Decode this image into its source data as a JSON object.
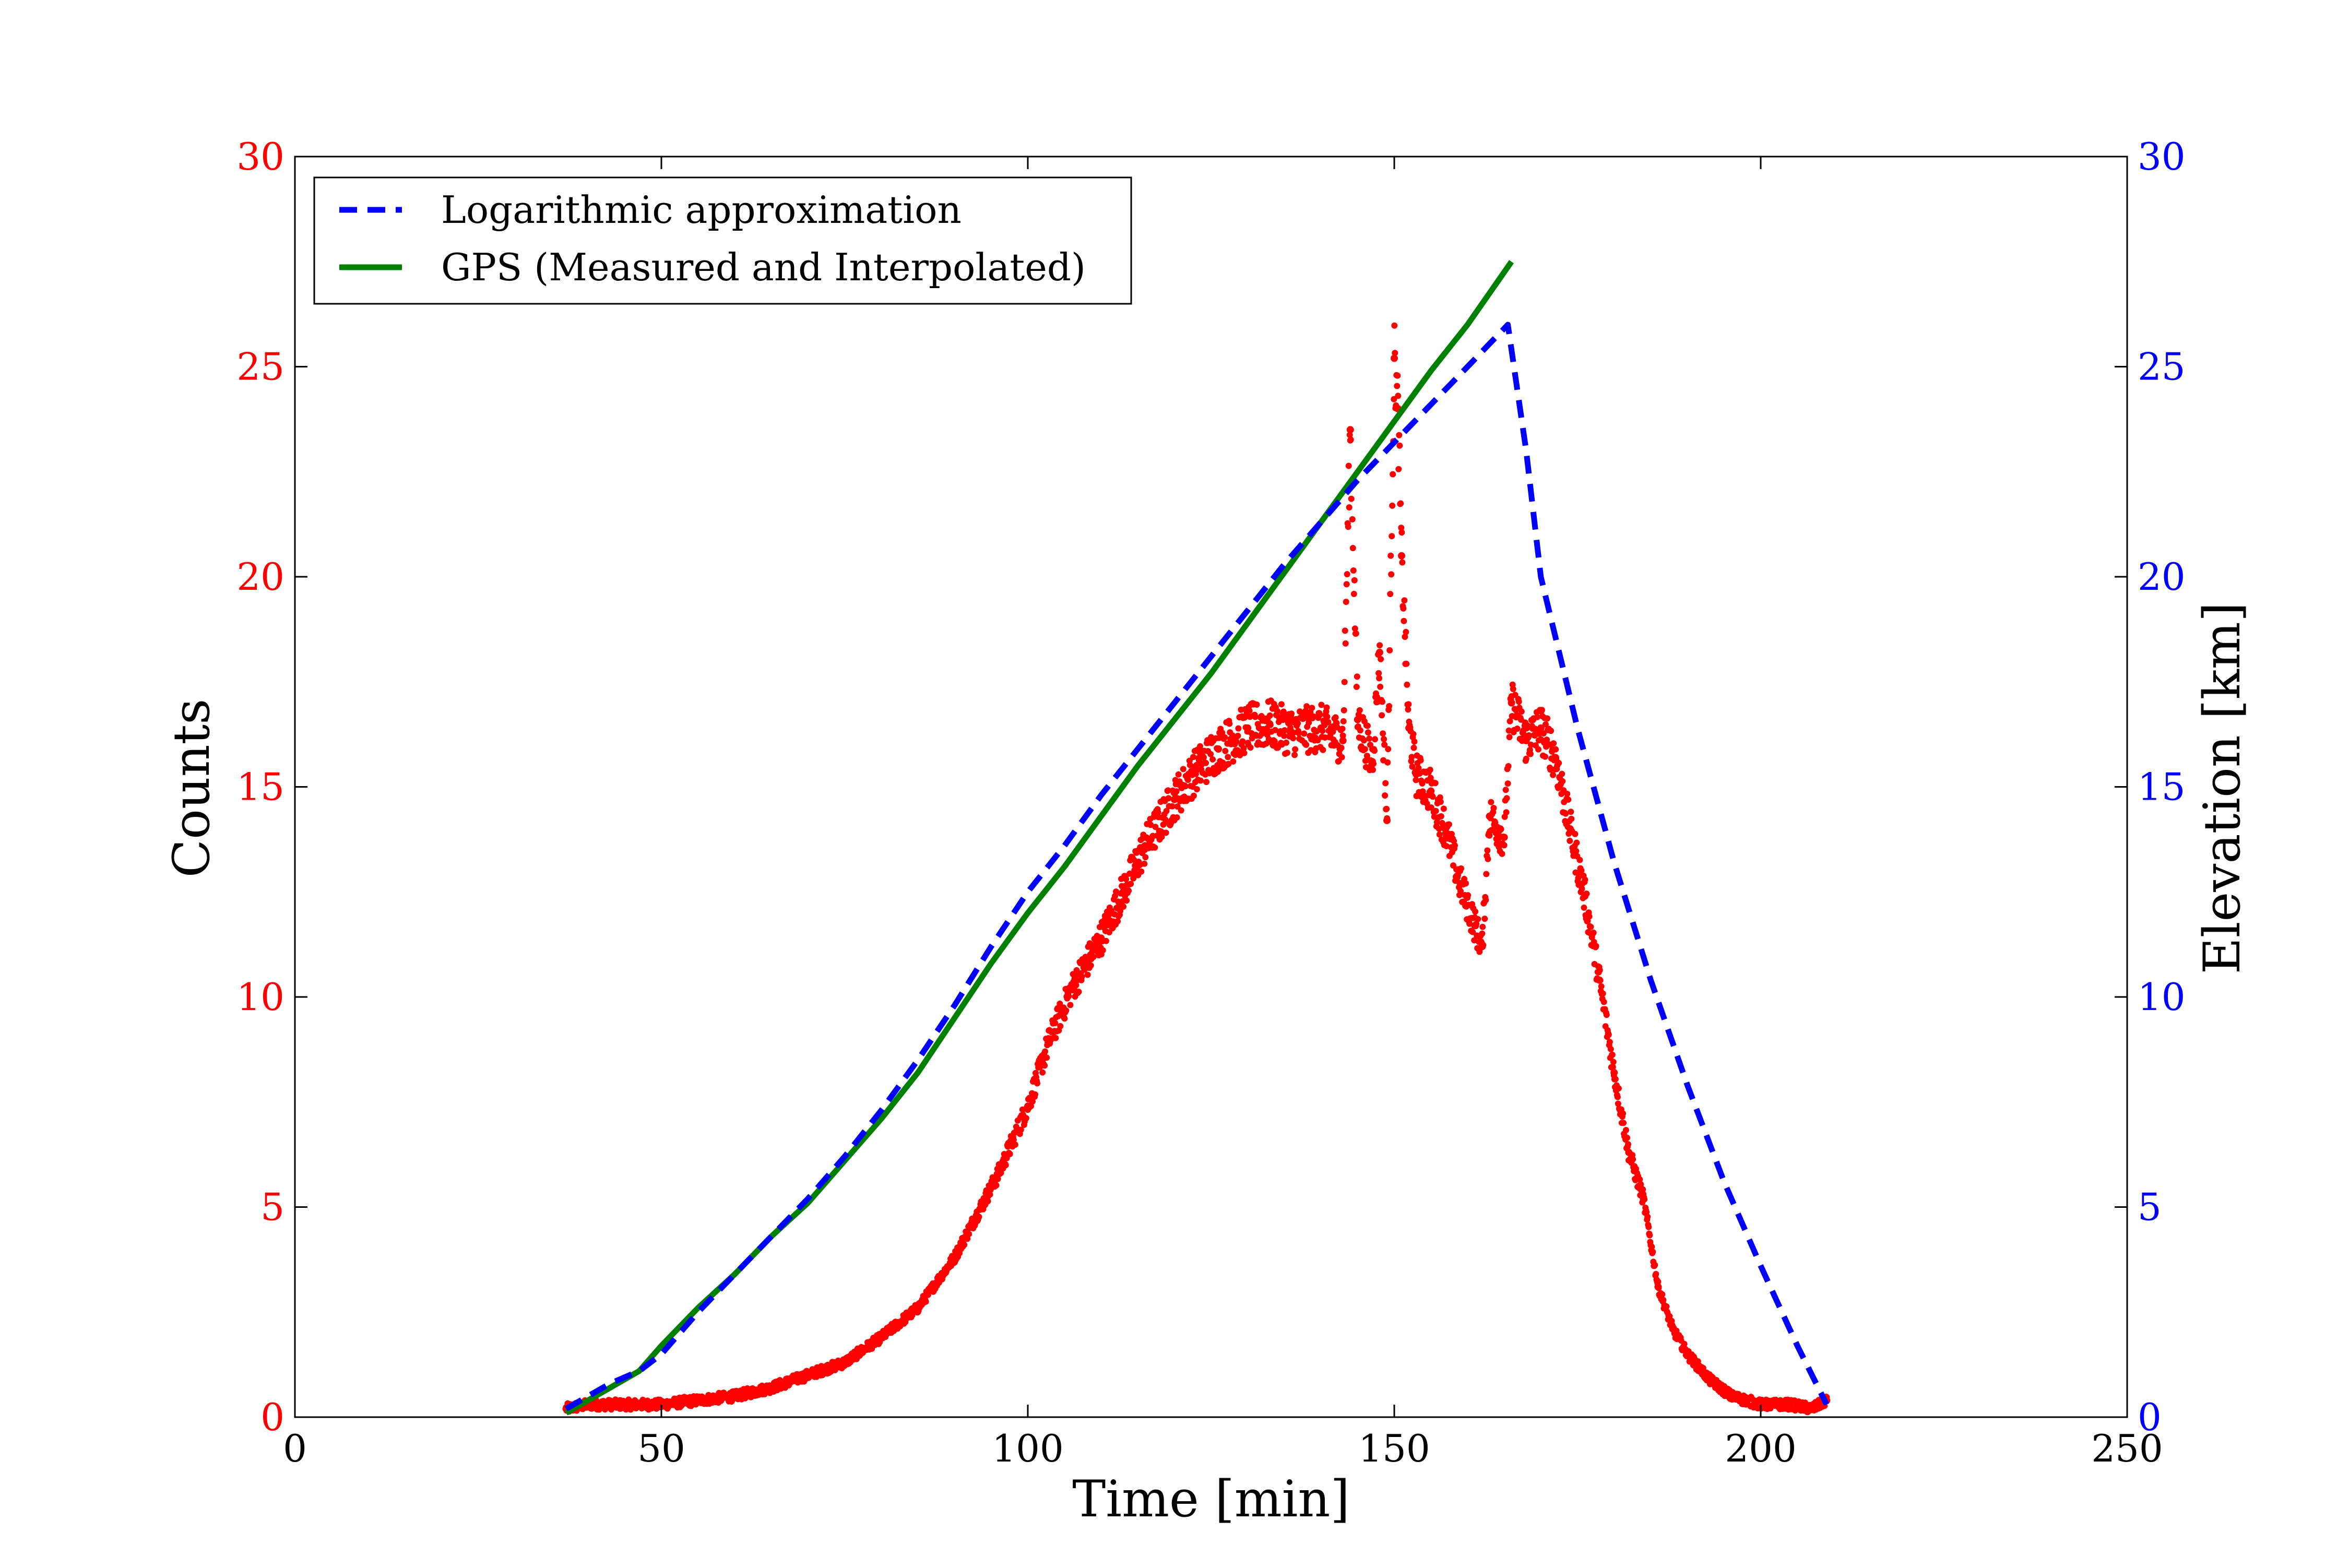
{
  "chart_data": {
    "type": "line",
    "title": "",
    "xlabel": "Time [min]",
    "ylabel_left": "Counts",
    "ylabel_right": "Elevation [km]",
    "xlim": [
      0,
      250
    ],
    "ylim_left": [
      0,
      30
    ],
    "ylim_right": [
      0,
      30
    ],
    "xticks": [
      "0",
      "50",
      "100",
      "150",
      "200",
      "250"
    ],
    "yticks_left": [
      "0",
      "5",
      "10",
      "15",
      "20",
      "25",
      "30"
    ],
    "yticks_right": [
      "0",
      "5",
      "10",
      "15",
      "20",
      "25",
      "30"
    ],
    "grid": false,
    "legend_position": "upper-left",
    "colors": {
      "counts": "#ff0000",
      "log_approx": "#0000ff",
      "gps": "#008000",
      "left_ticks": "#ff0000",
      "right_ticks": "#0000ff"
    },
    "series": [
      {
        "name": "Logarithmic approximation",
        "axis": "right",
        "style": "dashed",
        "x": [
          37,
          40,
          43,
          47,
          50,
          55,
          60,
          65,
          70,
          75,
          80,
          85,
          90,
          95,
          100,
          105,
          110,
          115,
          120,
          125,
          130,
          135,
          140,
          145,
          150,
          155,
          160,
          165.5,
          168,
          170,
          175,
          180,
          185,
          190,
          195,
          200,
          205,
          209
        ],
        "y": [
          0.2,
          0.5,
          0.8,
          1.1,
          1.5,
          2.5,
          3.4,
          4.3,
          5.2,
          6.2,
          7.3,
          8.5,
          9.8,
          11.2,
          12.5,
          13.6,
          14.8,
          15.9,
          17.0,
          18.1,
          19.2,
          20.3,
          21.3,
          22.3,
          23.2,
          24.1,
          25.0,
          26.0,
          23.0,
          20.0,
          16.4,
          13.2,
          10.4,
          7.9,
          5.6,
          3.6,
          1.7,
          0.3
        ]
      },
      {
        "name": "GPS (Measured and Interpolated)",
        "axis": "right",
        "style": "solid",
        "x": [
          37,
          40,
          43,
          47,
          50,
          55,
          60,
          65,
          70,
          75,
          80,
          85,
          90,
          95,
          100,
          105,
          110,
          115,
          120,
          125,
          130,
          135,
          140,
          145,
          150,
          155,
          160,
          166
        ],
        "y": [
          0.1,
          0.4,
          0.7,
          1.1,
          1.7,
          2.6,
          3.4,
          4.3,
          5.1,
          6.1,
          7.1,
          8.2,
          9.5,
          10.8,
          12.0,
          13.1,
          14.3,
          15.5,
          16.6,
          17.7,
          18.9,
          20.1,
          21.3,
          22.5,
          23.7,
          24.9,
          26.0,
          27.5
        ]
      },
      {
        "name": "Counts",
        "axis": "left",
        "style": "points",
        "x": [
          37,
          40,
          45,
          50,
          55,
          60,
          65,
          70,
          75,
          80,
          85,
          90,
          93,
          96,
          100,
          103,
          106,
          110,
          113,
          116,
          120,
          123,
          126,
          130,
          133,
          136,
          140,
          143,
          144,
          145,
          147,
          148,
          149,
          150,
          150.5,
          151,
          152,
          153,
          155,
          157,
          159,
          161,
          162,
          163,
          165,
          166,
          168,
          170,
          172,
          174,
          176,
          178,
          180,
          182,
          184,
          186,
          188,
          190,
          193,
          196,
          200,
          204,
          207,
          209
        ],
        "y": [
          0.2,
          0.3,
          0.3,
          0.3,
          0.4,
          0.5,
          0.7,
          1.0,
          1.3,
          1.9,
          2.6,
          3.8,
          4.8,
          5.8,
          7.4,
          9.0,
          10.2,
          11.4,
          12.5,
          13.6,
          14.7,
          15.4,
          15.9,
          16.4,
          16.5,
          16.3,
          16.4,
          16.1,
          23.5,
          16.6,
          15.6,
          18.2,
          14.2,
          25.2,
          24.0,
          20.5,
          16.4,
          15.3,
          14.9,
          14.0,
          12.7,
          11.7,
          11.2,
          14.3,
          13.8,
          17.0,
          16.1,
          16.4,
          15.7,
          14.0,
          12.4,
          10.4,
          8.2,
          6.3,
          5.2,
          3.1,
          2.1,
          1.5,
          0.9,
          0.5,
          0.3,
          0.3,
          0.2,
          0.4
        ]
      }
    ]
  }
}
